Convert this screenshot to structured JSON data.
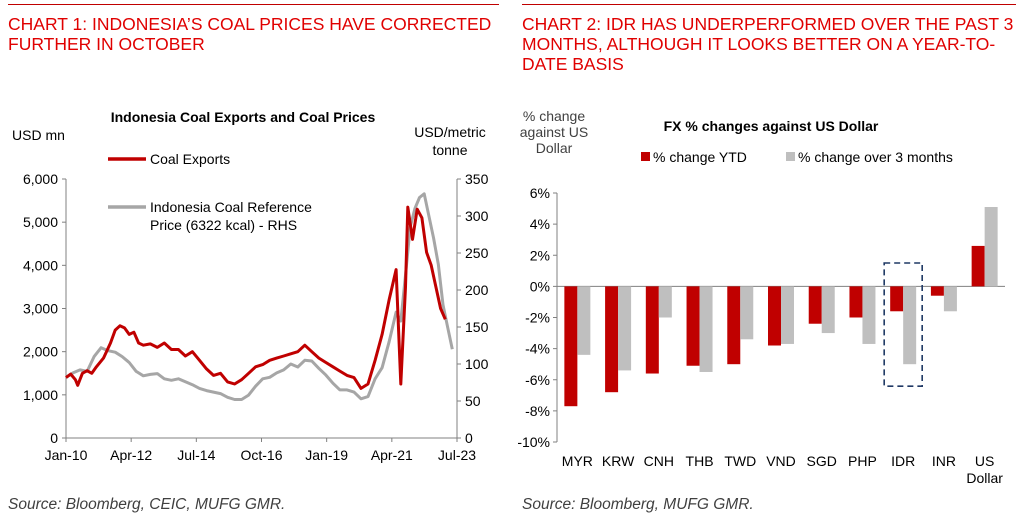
{
  "left": {
    "heading": "CHART 1: INDONESIA’S COAL PRICES HAVE CORRECTED FURTHER IN OCTOBER",
    "source": "Source: Bloomberg, CEIC, MUFG GMR."
  },
  "right": {
    "heading": "CHART 2: IDR HAS UNDERPERFORMED OVER THE PAST 3 MONTHS, ALTHOUGH IT LOOKS BETTER ON A YEAR-TO-DATE BASIS",
    "source": "Source: Bloomberg, MUFG GMR."
  },
  "chart_data": [
    {
      "type": "line",
      "title": "Indonesia Coal Exports and Coal Prices",
      "ylabel": "USD mn",
      "y2label": "USD/metric tonne",
      "x_ticks": [
        "Jan-10",
        "Apr-12",
        "Jul-14",
        "Oct-16",
        "Jan-19",
        "Apr-21",
        "Jul-23"
      ],
      "x_range": [
        "2010-01",
        "2023-12"
      ],
      "ylim": [
        0,
        6000
      ],
      "y_ticks": [
        "0",
        "1,000",
        "2,000",
        "3,000",
        "4,000",
        "5,000",
        "6,000"
      ],
      "y2lim": [
        0,
        350
      ],
      "y2_ticks": [
        "0",
        "50",
        "100",
        "150",
        "200",
        "250",
        "300",
        "350"
      ],
      "legend_position": "top-left",
      "series": [
        {
          "name": "Coal Exports",
          "axis": "left",
          "color": "#c00000",
          "points": [
            [
              "2010-01",
              1400
            ],
            [
              "2010-03",
              1480
            ],
            [
              "2010-05",
              1350
            ],
            [
              "2010-06",
              1220
            ],
            [
              "2010-08",
              1500
            ],
            [
              "2010-10",
              1560
            ],
            [
              "2010-12",
              1500
            ],
            [
              "2011-02",
              1650
            ],
            [
              "2011-05",
              1850
            ],
            [
              "2011-08",
              2200
            ],
            [
              "2011-10",
              2500
            ],
            [
              "2011-12",
              2600
            ],
            [
              "2012-02",
              2550
            ],
            [
              "2012-04",
              2400
            ],
            [
              "2012-06",
              2450
            ],
            [
              "2012-08",
              2200
            ],
            [
              "2012-10",
              2150
            ],
            [
              "2013-01",
              2180
            ],
            [
              "2013-04",
              2100
            ],
            [
              "2013-07",
              2200
            ],
            [
              "2013-10",
              2050
            ],
            [
              "2014-01",
              2050
            ],
            [
              "2014-04",
              1900
            ],
            [
              "2014-07",
              2000
            ],
            [
              "2014-10",
              1800
            ],
            [
              "2015-01",
              1600
            ],
            [
              "2015-04",
              1450
            ],
            [
              "2015-07",
              1500
            ],
            [
              "2015-10",
              1300
            ],
            [
              "2016-01",
              1250
            ],
            [
              "2016-04",
              1350
            ],
            [
              "2016-07",
              1500
            ],
            [
              "2016-10",
              1650
            ],
            [
              "2017-01",
              1700
            ],
            [
              "2017-04",
              1800
            ],
            [
              "2017-07",
              1850
            ],
            [
              "2017-10",
              1900
            ],
            [
              "2018-01",
              1950
            ],
            [
              "2018-04",
              2000
            ],
            [
              "2018-07",
              2150
            ],
            [
              "2018-10",
              2000
            ],
            [
              "2019-01",
              1850
            ],
            [
              "2019-04",
              1750
            ],
            [
              "2019-07",
              1650
            ],
            [
              "2019-10",
              1550
            ],
            [
              "2020-01",
              1450
            ],
            [
              "2020-04",
              1400
            ],
            [
              "2020-07",
              1150
            ],
            [
              "2020-10",
              1250
            ],
            [
              "2021-01",
              1800
            ],
            [
              "2021-04",
              2400
            ],
            [
              "2021-07",
              3200
            ],
            [
              "2021-10",
              3900
            ],
            [
              "2021-12",
              1250
            ],
            [
              "2022-02",
              3500
            ],
            [
              "2022-03",
              5350
            ],
            [
              "2022-05",
              4600
            ],
            [
              "2022-07",
              5300
            ],
            [
              "2022-09",
              5100
            ],
            [
              "2022-11",
              4300
            ],
            [
              "2023-01",
              4000
            ],
            [
              "2023-03",
              3500
            ],
            [
              "2023-05",
              3000
            ],
            [
              "2023-07",
              2750
            ]
          ]
        },
        {
          "name": "Indonesia Coal Reference Price (6322 kcal) - RHS",
          "axis": "right",
          "color": "#a6a6a6",
          "points": [
            [
              "2010-01",
              82
            ],
            [
              "2010-04",
              88
            ],
            [
              "2010-07",
              92
            ],
            [
              "2010-10",
              90
            ],
            [
              "2011-01",
              110
            ],
            [
              "2011-04",
              122
            ],
            [
              "2011-07",
              118
            ],
            [
              "2011-10",
              116
            ],
            [
              "2012-01",
              110
            ],
            [
              "2012-04",
              102
            ],
            [
              "2012-07",
              90
            ],
            [
              "2012-10",
              84
            ],
            [
              "2013-01",
              86
            ],
            [
              "2013-04",
              87
            ],
            [
              "2013-07",
              80
            ],
            [
              "2013-10",
              78
            ],
            [
              "2014-01",
              80
            ],
            [
              "2014-04",
              76
            ],
            [
              "2014-07",
              72
            ],
            [
              "2014-10",
              67
            ],
            [
              "2015-01",
              64
            ],
            [
              "2015-04",
              62
            ],
            [
              "2015-07",
              60
            ],
            [
              "2015-10",
              55
            ],
            [
              "2016-01",
              52
            ],
            [
              "2016-04",
              52
            ],
            [
              "2016-07",
              58
            ],
            [
              "2016-10",
              70
            ],
            [
              "2017-01",
              80
            ],
            [
              "2017-04",
              82
            ],
            [
              "2017-07",
              88
            ],
            [
              "2017-10",
              92
            ],
            [
              "2018-01",
              100
            ],
            [
              "2018-04",
              96
            ],
            [
              "2018-07",
              105
            ],
            [
              "2018-10",
              104
            ],
            [
              "2019-01",
              94
            ],
            [
              "2019-04",
              85
            ],
            [
              "2019-07",
              74
            ],
            [
              "2019-10",
              65
            ],
            [
              "2020-01",
              65
            ],
            [
              "2020-04",
              62
            ],
            [
              "2020-07",
              53
            ],
            [
              "2020-10",
              56
            ],
            [
              "2021-01",
              80
            ],
            [
              "2021-04",
              95
            ],
            [
              "2021-07",
              130
            ],
            [
              "2021-10",
              170
            ],
            [
              "2021-12",
              158
            ],
            [
              "2022-02",
              220
            ],
            [
              "2022-04",
              285
            ],
            [
              "2022-06",
              310
            ],
            [
              "2022-08",
              325
            ],
            [
              "2022-10",
              330
            ],
            [
              "2022-12",
              300
            ],
            [
              "2023-02",
              270
            ],
            [
              "2023-04",
              235
            ],
            [
              "2023-06",
              180
            ],
            [
              "2023-08",
              150
            ],
            [
              "2023-10",
              120
            ]
          ]
        }
      ]
    },
    {
      "type": "bar",
      "title": "FX % changes against US Dollar",
      "ylabel": "% change against US Dollar",
      "categories": [
        "MYR",
        "KRW",
        "CNH",
        "THB",
        "TWD",
        "VND",
        "SGD",
        "PHP",
        "IDR",
        "INR",
        "US Dollar"
      ],
      "ylim": [
        -10,
        6
      ],
      "y_ticks": [
        "-10%",
        "-8%",
        "-6%",
        "-4%",
        "-2%",
        "0%",
        "2%",
        "4%",
        "6%"
      ],
      "legend_position": "top",
      "highlight_category": "IDR",
      "series": [
        {
          "name": "% change YTD",
          "color": "#c00000",
          "values": [
            -7.7,
            -6.8,
            -5.6,
            -5.1,
            -5.0,
            -3.8,
            -2.4,
            -2.0,
            -1.6,
            -0.6,
            2.6
          ]
        },
        {
          "name": "% change over 3 months",
          "color": "#bfbfbf",
          "values": [
            -4.4,
            -5.4,
            -2.0,
            -5.5,
            -3.4,
            -3.7,
            -3.0,
            -3.7,
            -5.0,
            -1.6,
            5.1
          ]
        }
      ]
    }
  ]
}
